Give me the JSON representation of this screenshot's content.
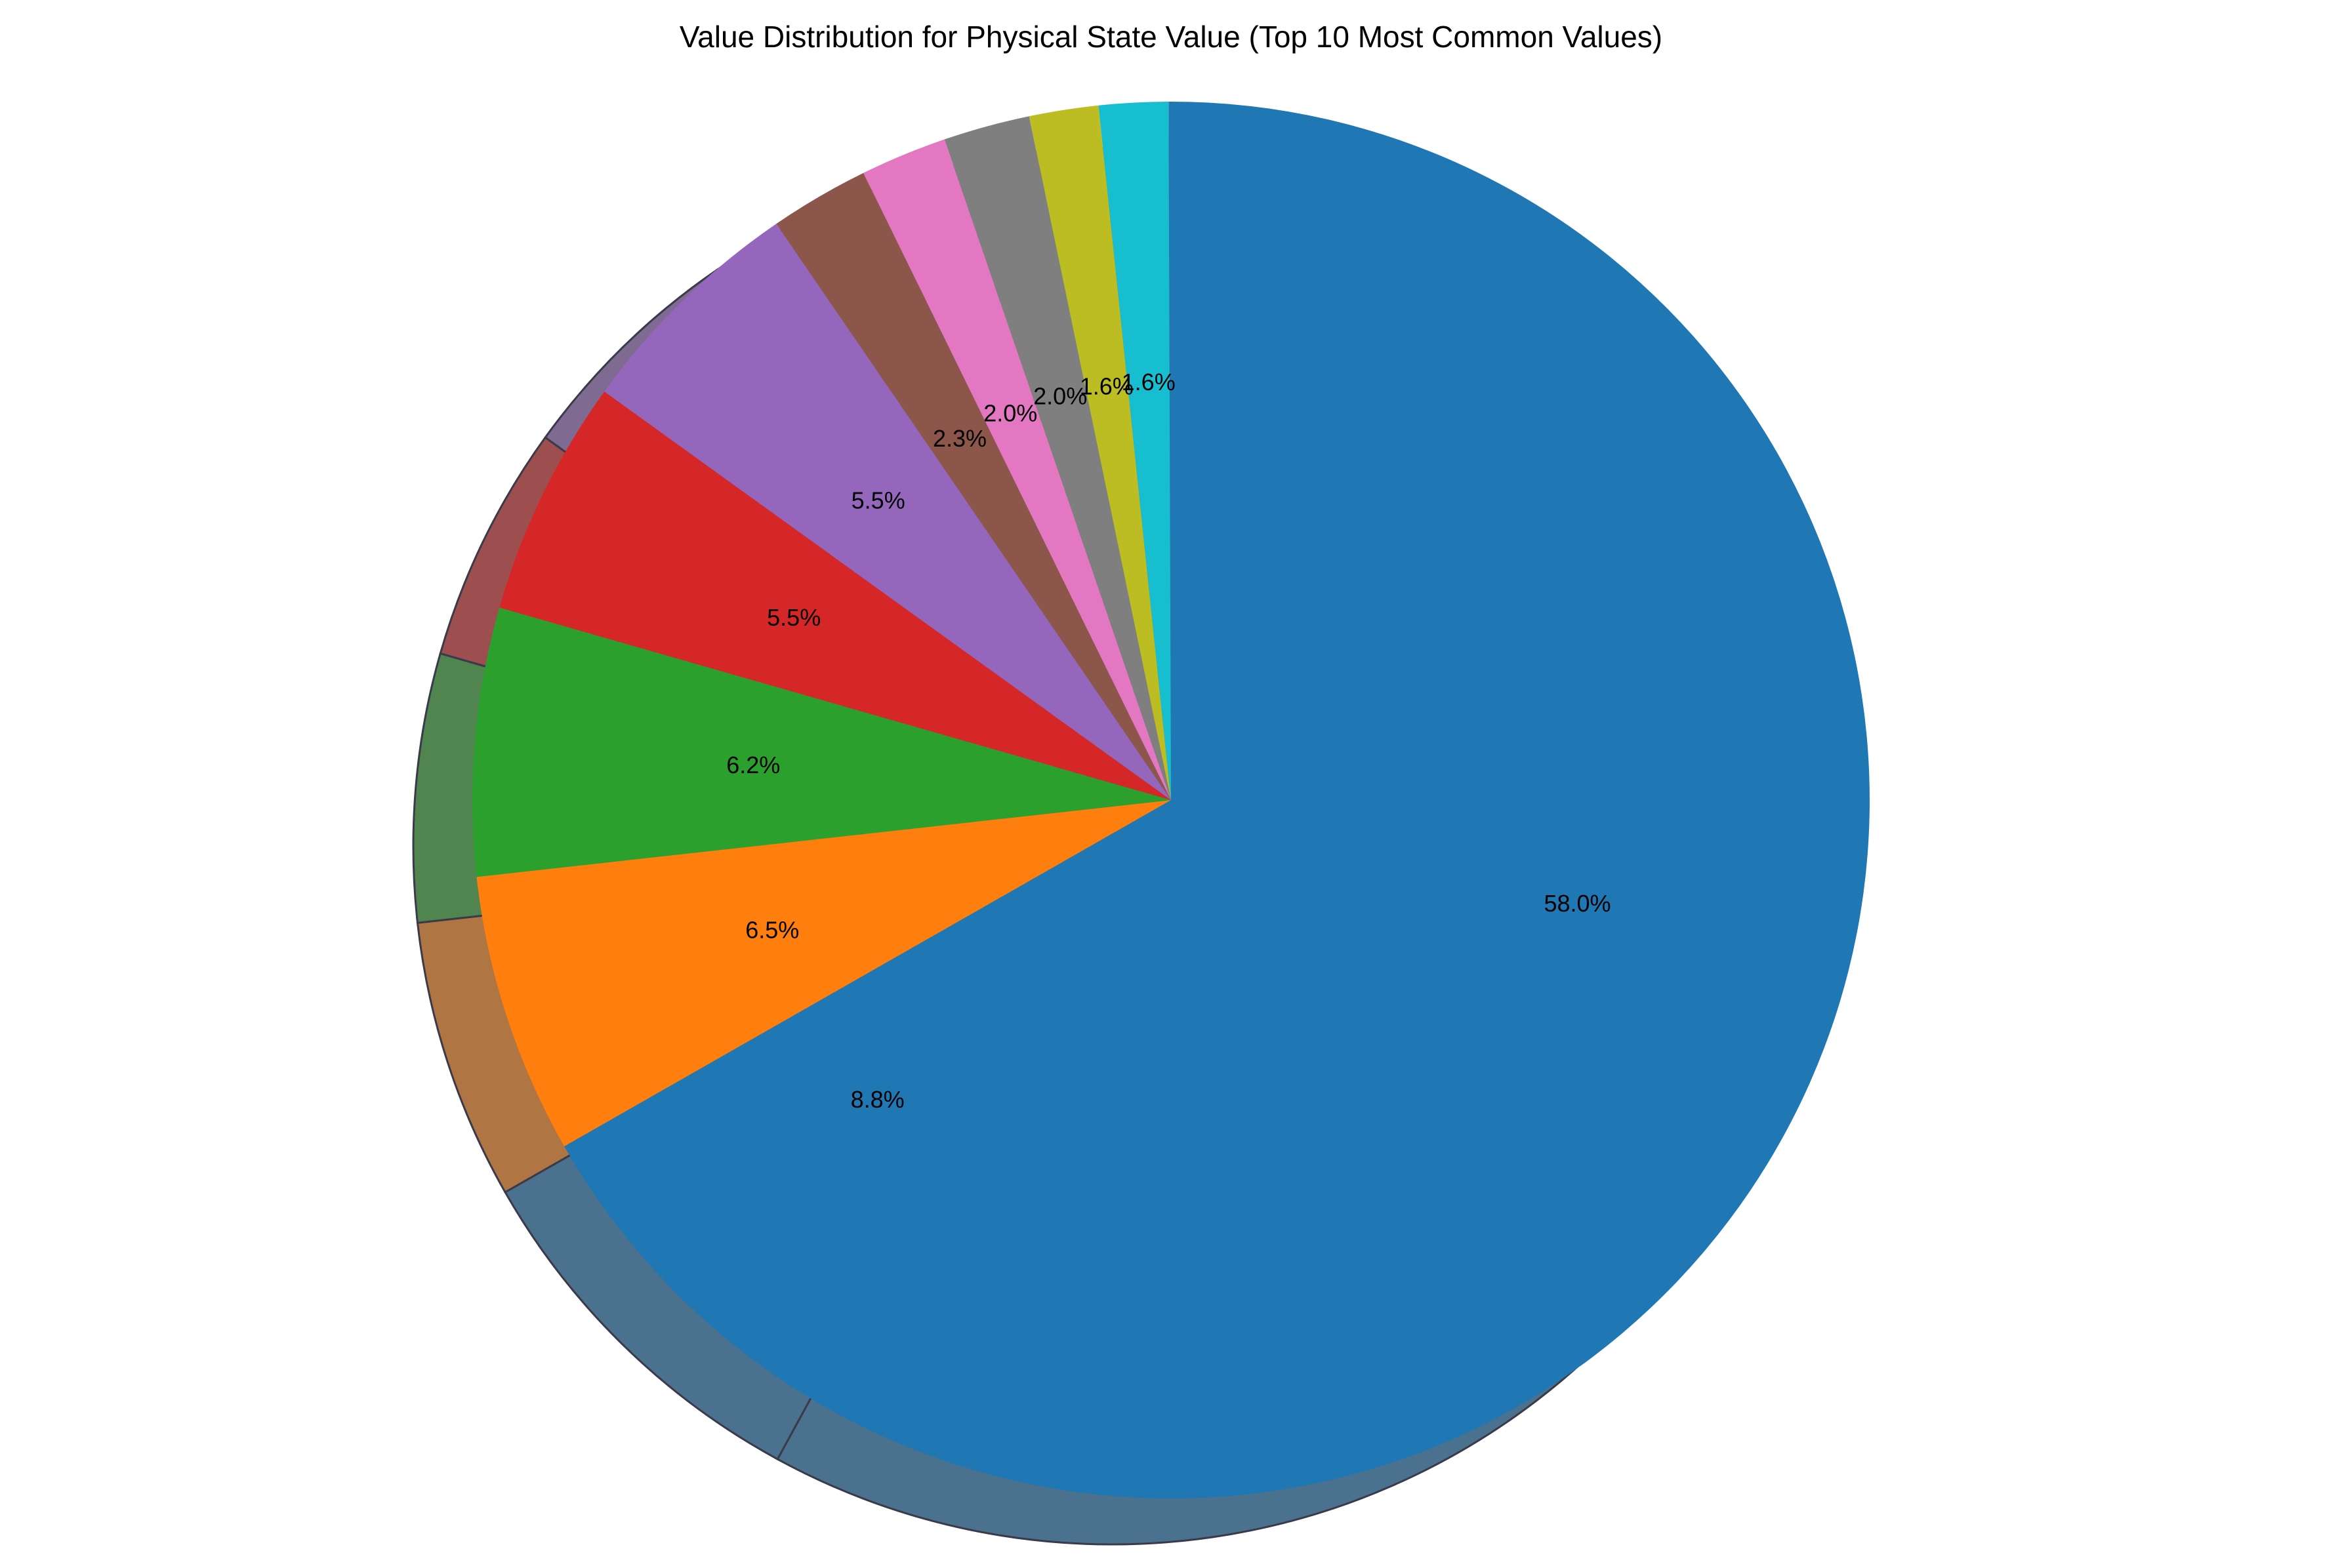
{
  "chart_data": {
    "type": "pie",
    "title": "Value Distribution for Physical State Value (Top 10 Most Common Values)",
    "slices": [
      {
        "value": 58.0,
        "label": "58.0%",
        "color": "#1f77b4"
      },
      {
        "value": 8.8,
        "label": "8.8%",
        "color": "#1f77b4"
      },
      {
        "value": 6.5,
        "label": "6.5%",
        "color": "#ff7f0e"
      },
      {
        "value": 6.2,
        "label": "6.2%",
        "color": "#2ca02c"
      },
      {
        "value": 5.5,
        "label": "5.5%",
        "color": "#d62728"
      },
      {
        "value": 5.5,
        "label": "5.5%",
        "color": "#9467bd"
      },
      {
        "value": 2.3,
        "label": "2.3%",
        "color": "#8c564b"
      },
      {
        "value": 2.0,
        "label": "2.0%",
        "color": "#e377c2"
      },
      {
        "value": 2.0,
        "label": "2.0%",
        "color": "#7f7f7f"
      },
      {
        "value": 1.6,
        "label": "1.6%",
        "color": "#bcbd22"
      },
      {
        "value": 1.6,
        "label": "1.6%",
        "color": "#17becf"
      }
    ],
    "shadow": true,
    "legend": "none"
  }
}
